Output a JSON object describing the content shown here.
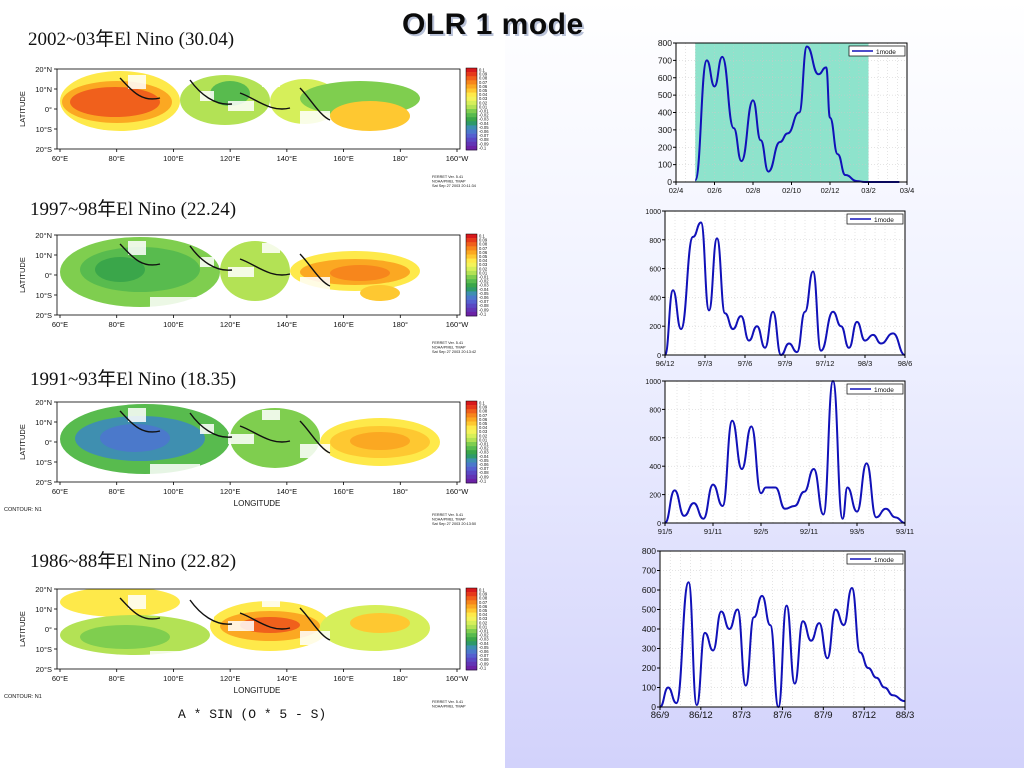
{
  "slide": {
    "title": "OLR  1 mode",
    "formula": "A * SIN (O * 5 - S)"
  },
  "events": [
    {
      "label": "2002~03年El Nino   (30.04)"
    },
    {
      "label": "1997~98年El Nino (22.24)"
    },
    {
      "label": "1991~93年El Nino (18.35)"
    },
    {
      "label": "1986~88年El Nino (22.82)"
    }
  ],
  "map_common": {
    "ylabel": "LATITUDE",
    "xlabel": "LONGITUDE",
    "lat_ticks": [
      "20°N",
      "10°N",
      "0°",
      "10°S",
      "20°S"
    ],
    "lon_ticks": [
      "60°E",
      "80°E",
      "100°E",
      "120°E",
      "140°E",
      "160°E",
      "180°",
      "160°W"
    ],
    "colorbar_labels": [
      "0.1",
      "0.09",
      "0.08",
      "0.07",
      "0.06",
      "0.05",
      "0.04",
      "0.03",
      "0.02",
      "0.01",
      "-0.01",
      "-0.02",
      "-0.03",
      "-0.04",
      "-0.05",
      "-0.06",
      "-0.07",
      "-0.08",
      "-0.09",
      "-0.1"
    ],
    "colorbar_colors": [
      "#d7191c",
      "#e6391a",
      "#f0601c",
      "#f7861c",
      "#fba822",
      "#fec831",
      "#fee94a",
      "#f3f35b",
      "#d6ef5a",
      "#b3e255",
      "#7fce4f",
      "#58bb4e",
      "#3aa64a",
      "#2f9a6a",
      "#3f8fb0",
      "#4b79cb",
      "#5560d0",
      "#5a48c4",
      "#6235b5",
      "#6b22a5"
    ],
    "footer_lines": [
      "FERRET Ver. 5.41",
      "NOAA/PMEL TMAP"
    ],
    "contour_label": "CONTOUR: N1"
  },
  "maps": [
    {
      "date": "Sat Sep 27 2003 20:11:34",
      "show_xlabel": false,
      "show_contour": false,
      "pattern": "A"
    },
    {
      "date": "Sat Sep 27 2003 20:13:42",
      "show_xlabel": false,
      "show_contour": false,
      "pattern": "B"
    },
    {
      "date": "Sat Sep 27 2003 20:13:50",
      "show_xlabel": true,
      "show_contour": true,
      "pattern": "C"
    },
    {
      "date": "",
      "show_xlabel": true,
      "show_contour": true,
      "pattern": "D"
    }
  ],
  "chart_data": [
    {
      "type": "line",
      "legend": "1mode",
      "legend_position": "top-right",
      "x_ticks": [
        "02/4",
        "02/6",
        "02/8",
        "02/10",
        "02/12",
        "03/2",
        "03/4"
      ],
      "ylim": [
        0,
        800
      ],
      "y_ticks": [
        0,
        100,
        200,
        300,
        400,
        500,
        600,
        700,
        800
      ],
      "grid": true,
      "highlight_range": [
        0.5,
        5.0
      ],
      "x": [
        0.5,
        0.8,
        1.0,
        1.2,
        1.5,
        1.7,
        2.0,
        2.2,
        2.4,
        2.7,
        2.9,
        3.2,
        3.4,
        3.7,
        3.9,
        4.0,
        4.2,
        4.4,
        4.7,
        4.9,
        5.2,
        5.4,
        5.6,
        5.8
      ],
      "values": [
        10,
        700,
        550,
        720,
        310,
        120,
        470,
        240,
        60,
        230,
        280,
        400,
        780,
        620,
        660,
        370,
        160,
        40,
        5,
        0,
        0,
        0,
        0,
        0
      ]
    },
    {
      "type": "line",
      "legend": "1mode",
      "legend_position": "top-right",
      "x_ticks": [
        "96/12",
        "97/3",
        "97/6",
        "97/9",
        "97/12",
        "98/3",
        "98/6"
      ],
      "ylim": [
        0,
        1000
      ],
      "y_ticks": [
        0,
        200,
        400,
        600,
        800,
        1000
      ],
      "grid": true,
      "x": [
        0,
        0.2,
        0.4,
        0.7,
        0.9,
        1.1,
        1.3,
        1.5,
        1.7,
        1.9,
        2.1,
        2.3,
        2.5,
        2.7,
        2.9,
        3.1,
        3.3,
        3.5,
        3.7,
        3.9,
        4.2,
        4.4,
        4.6,
        4.8,
        5.0,
        5.2,
        5.4,
        5.7,
        6.0
      ],
      "values": [
        0,
        450,
        180,
        820,
        920,
        310,
        810,
        290,
        180,
        270,
        100,
        200,
        50,
        300,
        0,
        80,
        20,
        300,
        580,
        30,
        300,
        200,
        50,
        230,
        100,
        140,
        80,
        150,
        0
      ]
    },
    {
      "type": "line",
      "legend": "1mode",
      "legend_position": "top-right",
      "x_ticks": [
        "91/5",
        "91/11",
        "92/5",
        "92/11",
        "93/5",
        "93/11"
      ],
      "ylim": [
        0,
        1000
      ],
      "y_ticks": [
        0,
        200,
        400,
        600,
        800,
        1000
      ],
      "grid": true,
      "x": [
        0,
        0.2,
        0.4,
        0.6,
        0.8,
        1.0,
        1.2,
        1.4,
        1.6,
        1.8,
        2.0,
        2.1,
        2.3,
        2.5,
        2.7,
        2.9,
        3.1,
        3.3,
        3.5,
        3.7,
        3.8,
        4.0,
        4.2,
        4.4,
        4.6,
        4.8,
        5.0
      ],
      "values": [
        0,
        230,
        50,
        140,
        30,
        270,
        120,
        720,
        380,
        680,
        210,
        250,
        250,
        100,
        120,
        220,
        380,
        60,
        1000,
        30,
        250,
        80,
        420,
        40,
        100,
        40,
        0
      ]
    },
    {
      "type": "line",
      "legend": "1mode",
      "legend_position": "top-right",
      "x_ticks": [
        "86/9",
        "86/12",
        "87/3",
        "87/6",
        "87/9",
        "87/12",
        "88/3"
      ],
      "ylim": [
        0,
        800
      ],
      "y_ticks": [
        0,
        100,
        200,
        300,
        400,
        500,
        600,
        700,
        800
      ],
      "grid": true,
      "x": [
        0,
        0.2,
        0.4,
        0.7,
        0.9,
        1.1,
        1.3,
        1.5,
        1.7,
        1.9,
        2.1,
        2.3,
        2.5,
        2.7,
        2.9,
        3.1,
        3.3,
        3.5,
        3.7,
        3.9,
        4.1,
        4.3,
        4.5,
        4.7,
        4.9,
        5.1,
        5.3,
        5.5,
        5.7,
        6.0
      ],
      "values": [
        0,
        100,
        20,
        640,
        10,
        380,
        290,
        490,
        400,
        500,
        110,
        460,
        570,
        420,
        0,
        520,
        120,
        440,
        340,
        430,
        250,
        500,
        420,
        610,
        280,
        200,
        150,
        100,
        60,
        30
      ]
    }
  ]
}
